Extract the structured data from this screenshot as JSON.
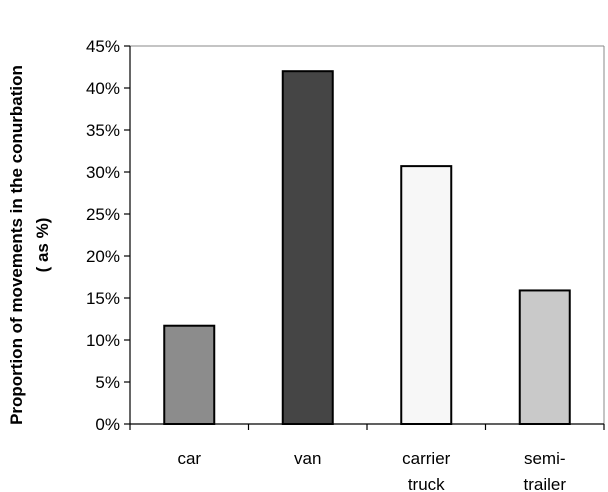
{
  "chart_data": {
    "type": "bar",
    "title": "",
    "xlabel": "",
    "ylabel_lines": [
      "Proportion of movements in the conurbation",
      "( as %)"
    ],
    "ylim": [
      0,
      45
    ],
    "y_ticks": [
      0,
      5,
      10,
      15,
      20,
      25,
      30,
      35,
      40,
      45
    ],
    "y_tick_labels": [
      "0%",
      "5%",
      "10%",
      "15%",
      "20%",
      "25%",
      "30%",
      "35%",
      "40%",
      "45%"
    ],
    "categories": [
      {
        "lines": [
          "car"
        ]
      },
      {
        "lines": [
          "van"
        ]
      },
      {
        "lines": [
          "carrier",
          "truck"
        ]
      },
      {
        "lines": [
          "semi-",
          "trailer"
        ]
      }
    ],
    "values": [
      11.7,
      42.0,
      30.7,
      15.9
    ],
    "bar_colors": [
      "#8c8c8c",
      "#454545",
      "#f7f7f7",
      "#c9c9c9"
    ],
    "grid": false,
    "legend": "none"
  }
}
